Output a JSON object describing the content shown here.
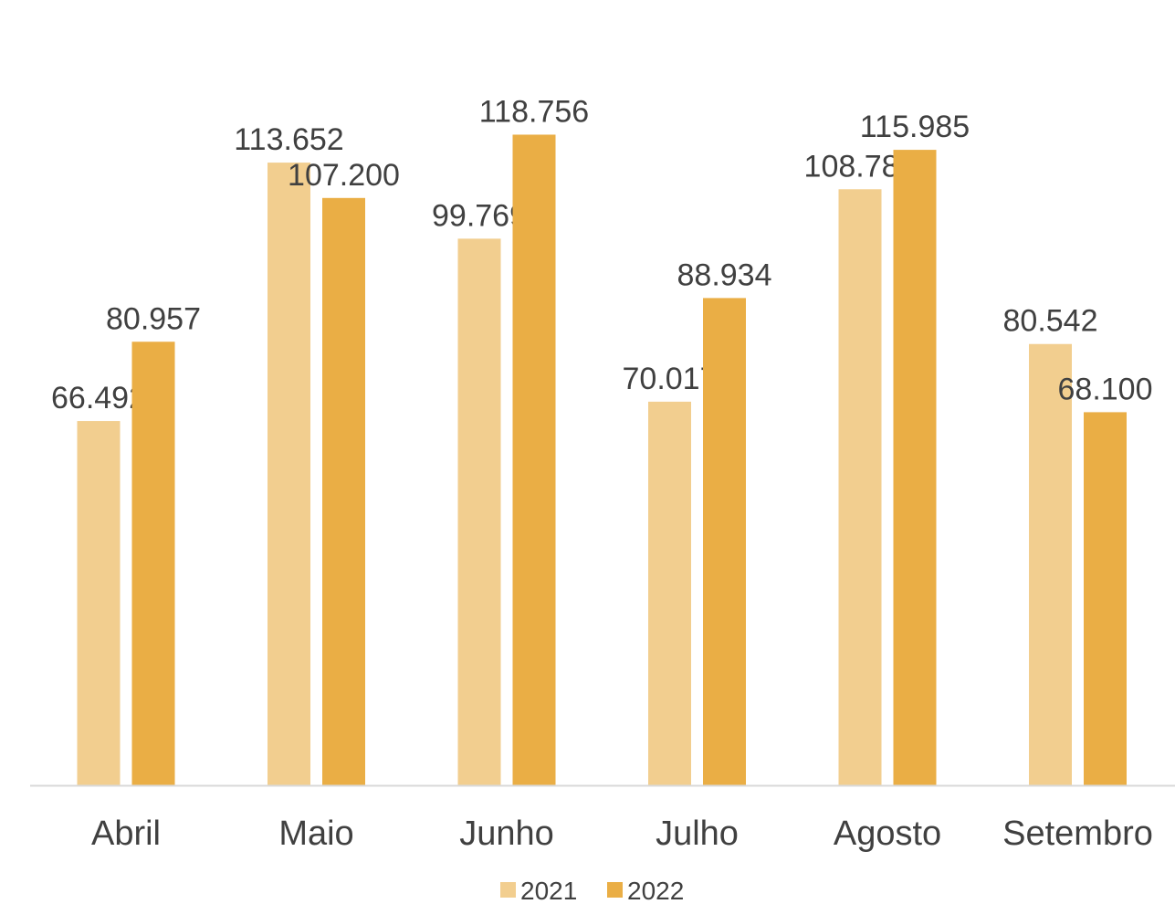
{
  "chart_data": {
    "type": "bar",
    "categories": [
      "Abril",
      "Maio",
      "Junho",
      "Julho",
      "Agosto",
      "Setembro"
    ],
    "series": [
      {
        "name": "2021",
        "values": [
          66492,
          113652,
          99769,
          70017,
          108789,
          80542
        ],
        "labels": [
          "66.492",
          "113.652",
          "99.769",
          "70.017",
          "108.789",
          "80.542"
        ],
        "color": "#F2CE8F"
      },
      {
        "name": "2022",
        "values": [
          80957,
          107200,
          118756,
          88934,
          115985,
          68100
        ],
        "labels": [
          "80.957",
          "107.200",
          "118.756",
          "88.934",
          "115.985",
          "68.100"
        ],
        "color": "#EAAE45"
      }
    ],
    "title": "",
    "xlabel": "",
    "ylabel": "",
    "ylim": [
      0,
      136000
    ],
    "grid": false,
    "legend": "bottom",
    "axis_color": "#D9D9D9",
    "text_color": "#404040"
  }
}
